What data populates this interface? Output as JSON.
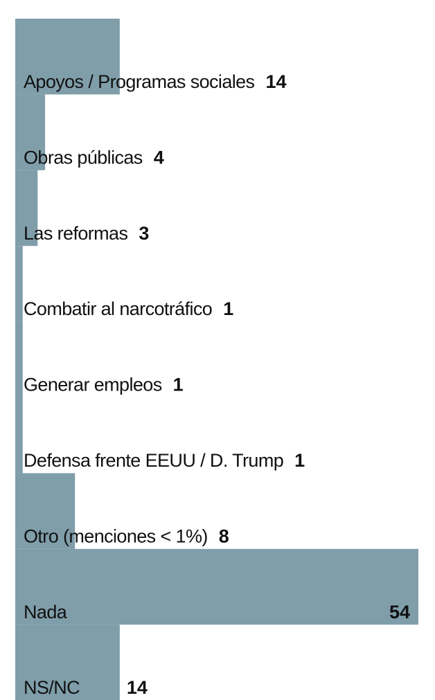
{
  "chart_data": {
    "type": "hbar",
    "color": "#7f9eaa",
    "categories": [
      "Apoyos / Programas sociales",
      "Obras públicas",
      "Las reformas",
      "Combatir al narcotráfico",
      "Generar empleos",
      "Defensa frente EEUU / D. Trump",
      "Otro (menciones < 1%)",
      "Nada",
      "NS/NC"
    ],
    "values": [
      14,
      4,
      3,
      1,
      1,
      1,
      8,
      54,
      14
    ]
  }
}
